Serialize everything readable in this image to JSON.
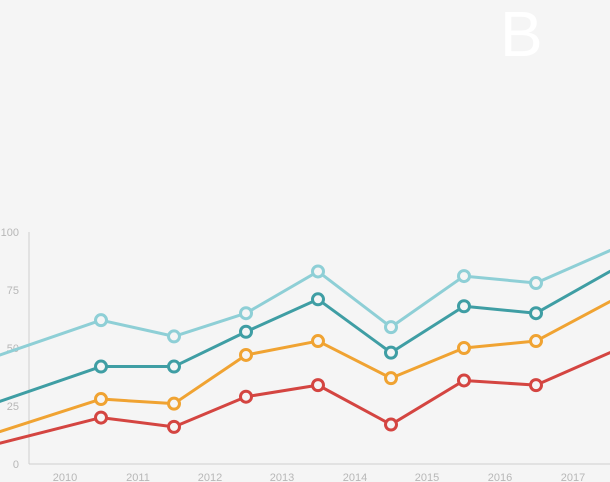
{
  "corner_label": "B",
  "chart_data": {
    "type": "line",
    "x": [
      "2010",
      "2011",
      "2012",
      "2013",
      "2014",
      "2015",
      "2016",
      "2017"
    ],
    "x_tick_labels": [
      "2010",
      "2011",
      "2012",
      "2013",
      "2014",
      "2015",
      "2016",
      "2017"
    ],
    "y_ticks": [
      "100",
      "75",
      "50",
      "25",
      "0"
    ],
    "ylim": [
      0,
      100
    ],
    "grid": false,
    "legend": "none",
    "series": [
      {
        "color": "#8ecfd6",
        "start": 47,
        "points": [
          62,
          55,
          65,
          83,
          59,
          81,
          78
        ],
        "end": 92
      },
      {
        "color": "#3f9ea4",
        "start": 27,
        "points": [
          42,
          42,
          57,
          71,
          48,
          68,
          65
        ],
        "end": 83
      },
      {
        "color": "#f0a332",
        "start": 14,
        "points": [
          28,
          26,
          47,
          53,
          37,
          50,
          53
        ],
        "end": 70
      },
      {
        "color": "#d44541",
        "start": 9,
        "points": [
          20,
          16,
          29,
          34,
          17,
          36,
          34
        ],
        "end": 48
      }
    ]
  }
}
